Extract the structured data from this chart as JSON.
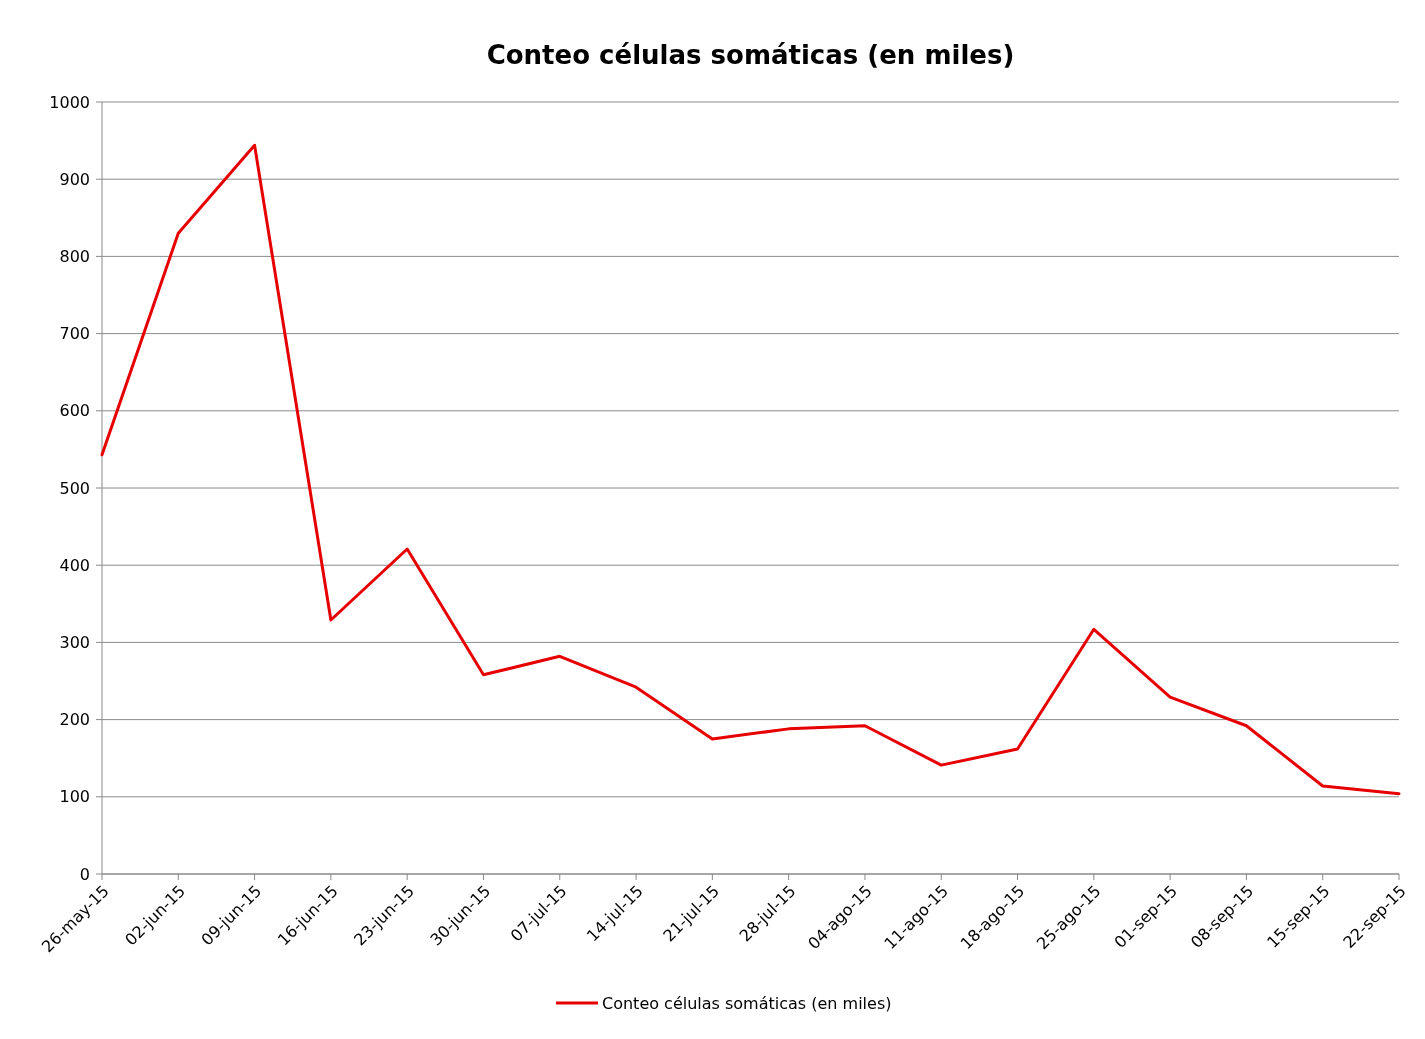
{
  "chart_data": {
    "type": "line",
    "title": "Conteo células somáticas (en miles)",
    "categories": [
      "26-may-15",
      "02-jun-15",
      "09-jun-15",
      "16-jun-15",
      "23-jun-15",
      "30-jun-15",
      "07-jul-15",
      "14-jul-15",
      "21-jul-15",
      "28-jul-15",
      "04-ago-15",
      "11-ago-15",
      "18-ago-15",
      "25-ago-15",
      "01-sep-15",
      "08-sep-15",
      "15-sep-15",
      "22-sep-15"
    ],
    "series": [
      {
        "name": "Conteo células somáticas (en miles)",
        "color": "#e60000",
        "values": [
          543,
          830,
          944,
          329,
          421,
          258,
          282,
          242,
          175,
          188,
          192,
          141,
          162,
          317,
          229,
          192,
          114,
          104
        ]
      }
    ],
    "ylim": [
      0,
      1000
    ],
    "yticks": [
      0,
      100,
      200,
      300,
      400,
      500,
      600,
      700,
      800,
      900,
      1000
    ],
    "grid": "y",
    "legend": "bottom",
    "marker": "none",
    "line_style": "solid"
  }
}
